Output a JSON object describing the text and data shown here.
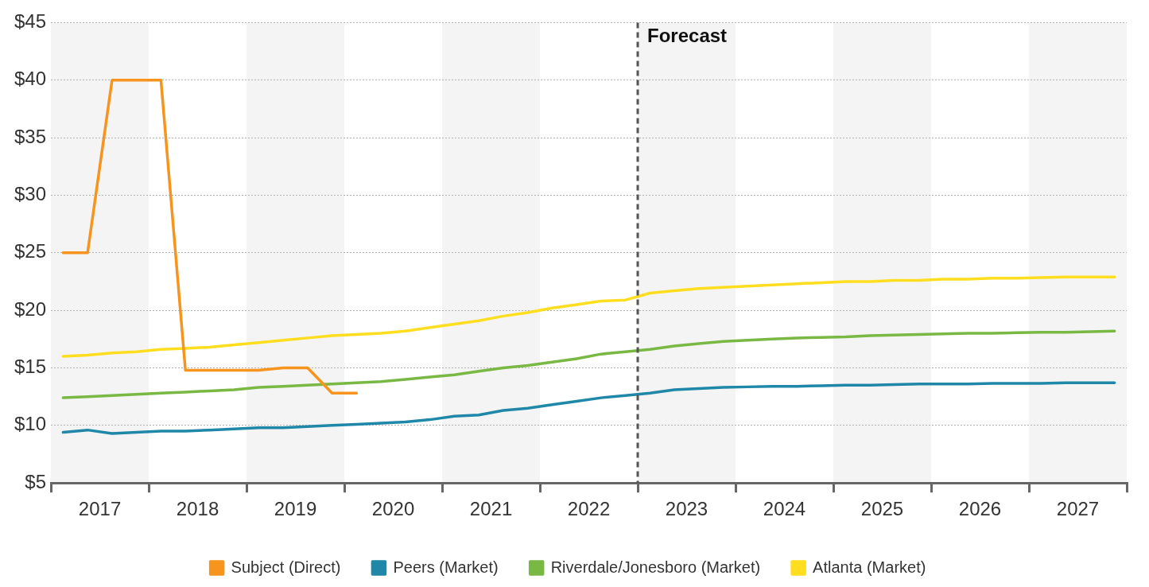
{
  "chart_data": {
    "type": "line",
    "x": [
      2017.125,
      2017.375,
      2017.625,
      2017.875,
      2018.125,
      2018.375,
      2018.625,
      2018.875,
      2019.125,
      2019.375,
      2019.625,
      2019.875,
      2020.125,
      2020.375,
      2020.625,
      2020.875,
      2021.125,
      2021.375,
      2021.625,
      2021.875,
      2022.125,
      2022.375,
      2022.625,
      2022.875,
      2023.125,
      2023.375,
      2023.625,
      2023.875,
      2024.125,
      2024.375,
      2024.625,
      2024.875,
      2025.125,
      2025.375,
      2025.625,
      2025.875,
      2026.125,
      2026.375,
      2026.625,
      2026.875,
      2027.125,
      2027.375,
      2027.625,
      2027.875
    ],
    "series": [
      {
        "name": "Subject (Direct)",
        "color": "#f7941d",
        "values": [
          25,
          25,
          40,
          40,
          40,
          14.8,
          14.8,
          14.8,
          14.8,
          15,
          15,
          12.8,
          12.8,
          null,
          null,
          null,
          null,
          null,
          null,
          null,
          null,
          null,
          null,
          null,
          null,
          null,
          null,
          null,
          null,
          null,
          null,
          null,
          null,
          null,
          null,
          null,
          null,
          null,
          null,
          null,
          null,
          null,
          null,
          null
        ]
      },
      {
        "name": "Peers (Market)",
        "color": "#1f88a8",
        "values": [
          9.4,
          9.6,
          9.3,
          9.4,
          9.5,
          9.5,
          9.6,
          9.7,
          9.8,
          9.8,
          9.9,
          10,
          10.1,
          10.2,
          10.3,
          10.5,
          10.8,
          10.9,
          11.3,
          11.5,
          11.8,
          12.1,
          12.4,
          12.6,
          12.8,
          13.1,
          13.2,
          13.3,
          13.35,
          13.4,
          13.4,
          13.45,
          13.5,
          13.5,
          13.55,
          13.6,
          13.6,
          13.6,
          13.65,
          13.65,
          13.65,
          13.7,
          13.7,
          13.7
        ]
      },
      {
        "name": "Riverdale/Jonesboro (Market)",
        "color": "#78b843",
        "values": [
          12.4,
          12.5,
          12.6,
          12.7,
          12.8,
          12.9,
          13,
          13.1,
          13.3,
          13.4,
          13.5,
          13.6,
          13.7,
          13.8,
          14,
          14.2,
          14.4,
          14.7,
          15,
          15.2,
          15.5,
          15.8,
          16.2,
          16.4,
          16.6,
          16.9,
          17.1,
          17.3,
          17.4,
          17.5,
          17.6,
          17.65,
          17.7,
          17.8,
          17.85,
          17.9,
          17.95,
          18,
          18,
          18.05,
          18.1,
          18.1,
          18.15,
          18.2
        ]
      },
      {
        "name": "Atlanta (Market)",
        "color": "#ffdd1f",
        "values": [
          16,
          16.1,
          16.3,
          16.4,
          16.6,
          16.7,
          16.8,
          17,
          17.2,
          17.4,
          17.6,
          17.8,
          17.9,
          18,
          18.2,
          18.5,
          18.8,
          19.1,
          19.5,
          19.8,
          20.2,
          20.5,
          20.8,
          20.9,
          21.5,
          21.7,
          21.9,
          22,
          22.1,
          22.2,
          22.3,
          22.4,
          22.5,
          22.5,
          22.6,
          22.6,
          22.7,
          22.7,
          22.8,
          22.8,
          22.85,
          22.9,
          22.9,
          22.9
        ]
      }
    ],
    "xlim": [
      2017,
      2028
    ],
    "xticks": [
      {
        "value": 2017,
        "label": null
      },
      {
        "value": 2017.5,
        "label": "2017"
      },
      {
        "value": 2018,
        "label": null
      },
      {
        "value": 2018.5,
        "label": "2018"
      },
      {
        "value": 2019,
        "label": null
      },
      {
        "value": 2019.5,
        "label": "2019"
      },
      {
        "value": 2020,
        "label": null
      },
      {
        "value": 2020.5,
        "label": "2020"
      },
      {
        "value": 2021,
        "label": null
      },
      {
        "value": 2021.5,
        "label": "2021"
      },
      {
        "value": 2022,
        "label": null
      },
      {
        "value": 2022.5,
        "label": "2022"
      },
      {
        "value": 2023,
        "label": null
      },
      {
        "value": 2023.5,
        "label": "2023"
      },
      {
        "value": 2024,
        "label": null
      },
      {
        "value": 2024.5,
        "label": "2024"
      },
      {
        "value": 2025,
        "label": null
      },
      {
        "value": 2025.5,
        "label": "2025"
      },
      {
        "value": 2026,
        "label": null
      },
      {
        "value": 2026.5,
        "label": "2026"
      },
      {
        "value": 2027,
        "label": null
      },
      {
        "value": 2027.5,
        "label": "2027"
      },
      {
        "value": 2028,
        "label": null
      }
    ],
    "ylim": [
      5,
      45
    ],
    "yticks": [
      {
        "value": 5,
        "label": "$5"
      },
      {
        "value": 10,
        "label": "$10"
      },
      {
        "value": 15,
        "label": "$15"
      },
      {
        "value": 20,
        "label": "$20"
      },
      {
        "value": 25,
        "label": "$25"
      },
      {
        "value": 30,
        "label": "$30"
      },
      {
        "value": 35,
        "label": "$35"
      },
      {
        "value": 40,
        "label": "$40"
      },
      {
        "value": 45,
        "label": "$45"
      }
    ],
    "ref_lines": [
      {
        "axis": "x",
        "value": 2023,
        "label": "Forecast",
        "color": "#555555",
        "line_style": "dashed"
      }
    ],
    "bands": [
      {
        "axis": "x",
        "from": 2017,
        "to": 2018,
        "color": "#f4f4f4"
      },
      {
        "axis": "x",
        "from": 2019,
        "to": 2020,
        "color": "#f4f4f4"
      },
      {
        "axis": "x",
        "from": 2021,
        "to": 2022,
        "color": "#f4f4f4"
      },
      {
        "axis": "x",
        "from": 2023,
        "to": 2024,
        "color": "#f4f4f4"
      },
      {
        "axis": "x",
        "from": 2025,
        "to": 2026,
        "color": "#f4f4f4"
      },
      {
        "axis": "x",
        "from": 2027,
        "to": 2028,
        "color": "#f4f4f4"
      }
    ],
    "grid": "y",
    "legend": "bottom",
    "marker": "none",
    "line_style": "solid"
  }
}
